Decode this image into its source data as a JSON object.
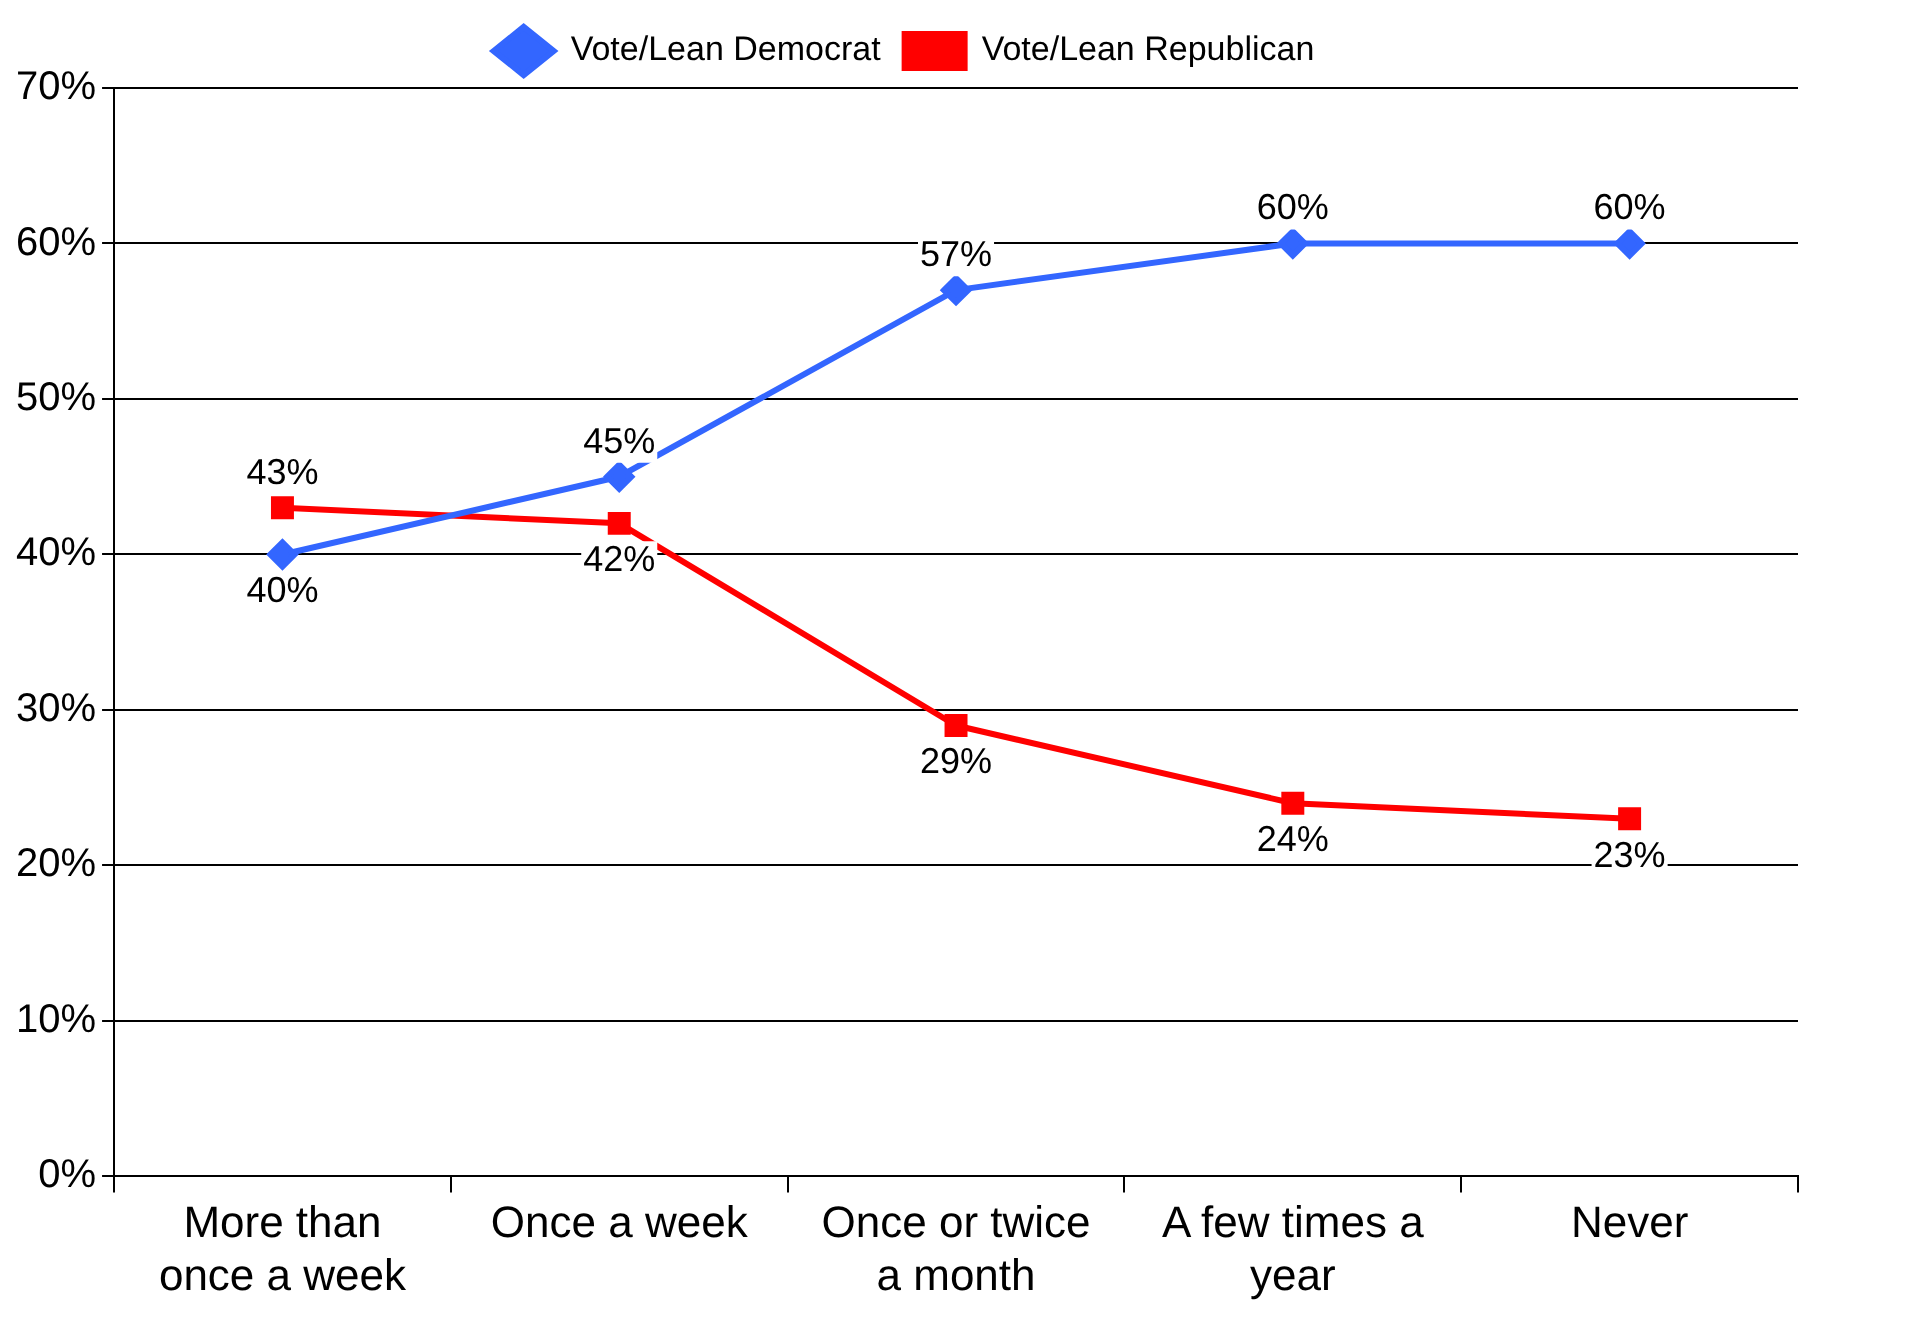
{
  "chart_data": {
    "type": "line",
    "categories": [
      "More than once a week",
      "Once a week",
      "Once or twice a month",
      "A few times a year",
      "Never"
    ],
    "series": [
      {
        "name": "Vote/Lean Democrat",
        "color": "#3366ff",
        "marker": "diamond",
        "values": [
          40,
          45,
          57,
          60,
          60
        ],
        "value_labels": [
          "40%",
          "45%",
          "57%",
          "60%",
          "60%"
        ]
      },
      {
        "name": "Vote/Lean Republican",
        "color": "#ff0000",
        "marker": "square",
        "values": [
          43,
          42,
          29,
          24,
          23
        ],
        "value_labels": [
          "43%",
          "42%",
          "29%",
          "24%",
          "23%"
        ]
      }
    ],
    "ylim": [
      0,
      70
    ],
    "yticks": [
      {
        "value": 0,
        "label": "0%"
      },
      {
        "value": 10,
        "label": "10%"
      },
      {
        "value": 20,
        "label": "20%"
      },
      {
        "value": 30,
        "label": "30%"
      },
      {
        "value": 40,
        "label": "40%"
      },
      {
        "value": 50,
        "label": "50%"
      },
      {
        "value": 60,
        "label": "60%"
      },
      {
        "value": 70,
        "label": "70%"
      }
    ],
    "grid": "y",
    "legend": "top",
    "line_style": "solid"
  }
}
